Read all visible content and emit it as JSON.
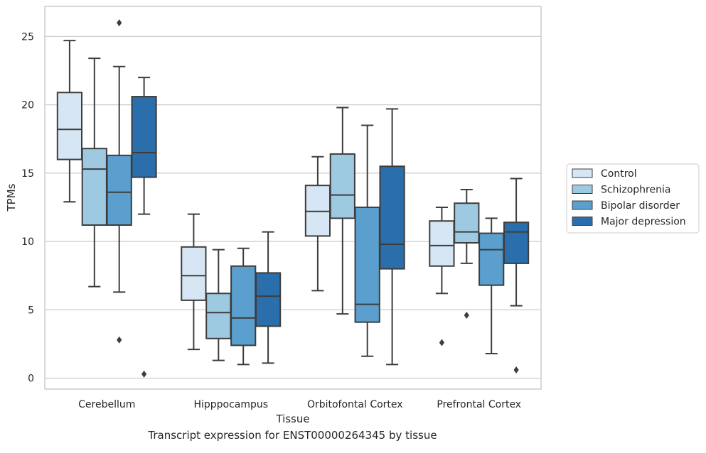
{
  "caption": "Transcript expression for ENST00000264345 by tissue",
  "chart_data": {
    "type": "box",
    "title": "",
    "xlabel": "Tissue",
    "ylabel": "TPMs",
    "ylim": [
      -0.8,
      27.2
    ],
    "yticks": [
      0,
      5,
      10,
      15,
      20,
      25
    ],
    "grid": "y",
    "legend_position": "right",
    "categories": [
      "Cerebellum",
      "Hipppocampus",
      "Orbitofontal Cortex",
      "Prefrontal Cortex"
    ],
    "series": [
      {
        "name": "Control",
        "color": "#d6e6f4",
        "boxes": [
          {
            "whisker_low": 12.9,
            "q1": 16.0,
            "median": 18.2,
            "q3": 20.9,
            "whisker_high": 24.7,
            "outliers": []
          },
          {
            "whisker_low": 2.1,
            "q1": 5.7,
            "median": 7.5,
            "q3": 9.6,
            "whisker_high": 12.0,
            "outliers": []
          },
          {
            "whisker_low": 6.4,
            "q1": 10.4,
            "median": 12.2,
            "q3": 14.1,
            "whisker_high": 16.2,
            "outliers": []
          },
          {
            "whisker_low": 6.2,
            "q1": 8.2,
            "median": 9.7,
            "q3": 11.5,
            "whisker_high": 12.5,
            "outliers": [
              2.6
            ]
          }
        ]
      },
      {
        "name": "Schizophrenia",
        "color": "#9ecae1",
        "boxes": [
          {
            "whisker_low": 6.7,
            "q1": 11.2,
            "median": 15.3,
            "q3": 16.8,
            "whisker_high": 23.4,
            "outliers": []
          },
          {
            "whisker_low": 1.3,
            "q1": 2.9,
            "median": 4.8,
            "q3": 6.2,
            "whisker_high": 9.4,
            "outliers": []
          },
          {
            "whisker_low": 4.7,
            "q1": 11.7,
            "median": 13.4,
            "q3": 16.4,
            "whisker_high": 19.8,
            "outliers": []
          },
          {
            "whisker_low": 8.4,
            "q1": 9.9,
            "median": 10.7,
            "q3": 12.8,
            "whisker_high": 13.8,
            "outliers": [
              4.6
            ]
          }
        ]
      },
      {
        "name": "Bipolar disorder",
        "color": "#5a9fcd",
        "boxes": [
          {
            "whisker_low": 6.3,
            "q1": 11.2,
            "median": 13.6,
            "q3": 16.3,
            "whisker_high": 22.8,
            "outliers": [
              2.8,
              26.0
            ]
          },
          {
            "whisker_low": 1.0,
            "q1": 2.4,
            "median": 4.4,
            "q3": 8.2,
            "whisker_high": 9.5,
            "outliers": []
          },
          {
            "whisker_low": 1.6,
            "q1": 4.1,
            "median": 5.4,
            "q3": 12.5,
            "whisker_high": 18.5,
            "outliers": []
          },
          {
            "whisker_low": 1.8,
            "q1": 6.8,
            "median": 9.4,
            "q3": 10.6,
            "whisker_high": 11.7,
            "outliers": []
          }
        ]
      },
      {
        "name": "Major depression",
        "color": "#2a6eab",
        "boxes": [
          {
            "whisker_low": 12.0,
            "q1": 14.7,
            "median": 16.5,
            "q3": 20.6,
            "whisker_high": 22.0,
            "outliers": [
              0.3
            ]
          },
          {
            "whisker_low": 1.1,
            "q1": 3.8,
            "median": 6.0,
            "q3": 7.7,
            "whisker_high": 10.7,
            "outliers": []
          },
          {
            "whisker_low": 1.0,
            "q1": 8.0,
            "median": 9.8,
            "q3": 15.5,
            "whisker_high": 19.7,
            "outliers": []
          },
          {
            "whisker_low": 5.3,
            "q1": 8.4,
            "median": 10.7,
            "q3": 11.4,
            "whisker_high": 14.6,
            "outliers": [
              0.6
            ]
          }
        ]
      }
    ]
  }
}
